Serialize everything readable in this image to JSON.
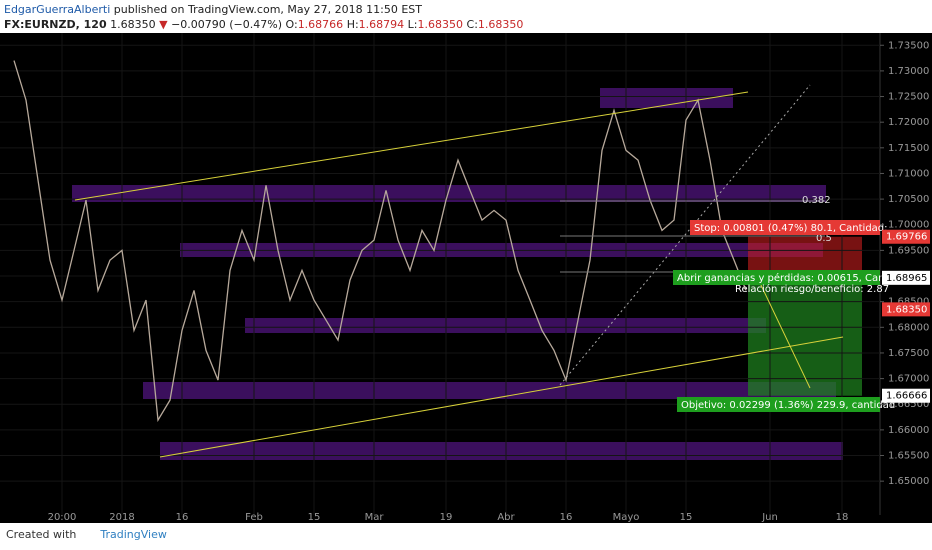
{
  "header": {
    "user": "EdgarGuerraAlberti",
    "published": "published on TradingView.com, May 27, 2018 11:50 EST",
    "symbol": "FX:EURNZD, 120",
    "last": "1.68350",
    "change": "−0.00790 (−0.47%)",
    "o_label": "O:",
    "o": "1.68766",
    "h_label": "H:",
    "h": "1.68794",
    "l_label": "L:",
    "l": "1.68350",
    "c_label": "C:",
    "c": "1.68350"
  },
  "footer": {
    "created": "Created with",
    "brand": "TradingView"
  },
  "chart_data": {
    "type": "line",
    "categories": [
      null,
      null,
      null,
      null,
      "20:00",
      null,
      null,
      null,
      null,
      "2018",
      null,
      null,
      null,
      null,
      "16",
      null,
      null,
      null,
      null,
      null,
      "Feb",
      null,
      null,
      null,
      null,
      "15",
      null,
      null,
      null,
      null,
      "Mar",
      null,
      null,
      null,
      null,
      null,
      "19",
      null,
      null,
      null,
      null,
      "Abr",
      null,
      null,
      null,
      null,
      "16",
      null,
      null,
      null,
      null,
      "Mayo",
      null,
      null,
      null,
      null,
      "15",
      null,
      null,
      null,
      null,
      null,
      null,
      "Jun",
      null,
      null,
      null,
      null,
      null,
      "18",
      null,
      null,
      null
    ],
    "series": [
      {
        "color": "#b7a99b",
        "values": [
          1.732,
          1.7243,
          1.7087,
          1.6931,
          1.6853,
          1.695,
          1.7048,
          1.6872,
          1.6931,
          1.695,
          1.6794,
          1.6853,
          1.6619,
          1.6658,
          1.6794,
          1.6872,
          1.6755,
          1.6697,
          1.6911,
          1.6989,
          1.6931,
          1.7077,
          1.695,
          1.6853,
          1.6911,
          1.6853,
          1.6814,
          1.6775,
          1.6892,
          1.695,
          1.697,
          1.7067,
          1.697,
          1.6911,
          1.6989,
          1.695,
          1.7048,
          1.7126,
          1.7067,
          1.7009,
          1.7028,
          1.7009,
          1.6911,
          1.6853,
          1.6794,
          1.6755,
          1.6697,
          1.6814,
          1.6931,
          1.7145,
          1.7223,
          1.7145,
          1.7126,
          1.7048,
          1.6989,
          1.7009,
          1.7204,
          1.7243,
          1.7126,
          1.6989,
          1.6931,
          1.6872,
          null,
          null,
          null,
          null,
          null,
          null,
          null,
          null,
          null,
          null,
          null
        ]
      }
    ],
    "ylim": [
      1.6434,
      1.737
    ],
    "yticks": [
      {
        "value": 1.65,
        "label": "1.65000"
      },
      {
        "value": 1.655,
        "label": "1.65500"
      },
      {
        "value": 1.66,
        "label": "1.66000"
      },
      {
        "value": 1.665,
        "label": "1.66500"
      },
      {
        "value": 1.67,
        "label": "1.67000"
      },
      {
        "value": 1.675,
        "label": "1.67500"
      },
      {
        "value": 1.68,
        "label": "1.68000"
      },
      {
        "value": 1.685,
        "label": "1.68500"
      },
      {
        "value": 1.69,
        "label": "1.69000"
      },
      {
        "value": 1.695,
        "label": "1.69500"
      },
      {
        "value": 1.7,
        "label": "1.70000"
      },
      {
        "value": 1.705,
        "label": "1.70500"
      },
      {
        "value": 1.71,
        "label": "1.71000"
      },
      {
        "value": 1.715,
        "label": "1.71500"
      },
      {
        "value": 1.72,
        "label": "1.72000"
      },
      {
        "value": 1.725,
        "label": "1.72500"
      },
      {
        "value": 1.73,
        "label": "1.73000"
      },
      {
        "value": 1.735,
        "label": "1.73500"
      }
    ],
    "grid": true,
    "price_tags": [
      {
        "value": 1.69766,
        "label": "1.69766",
        "color": "#e53935",
        "text_color": "#ffffff"
      },
      {
        "value": 1.68965,
        "label": "1.68965",
        "color": "#ffffff",
        "text_color": "#000000"
      },
      {
        "value": 1.6835,
        "label": "1.68350",
        "color": "#e53935",
        "text_color": "#ffffff"
      },
      {
        "value": 1.66666,
        "label": "1.66666",
        "color": "#ffffff",
        "text_color": "#000000"
      }
    ],
    "fib_labels": [
      "0.382",
      "0.5"
    ],
    "stop_text": "Stop: 0.00801 (0.47%) 80.1, Cantidad:",
    "pnl_text": "Abrir ganancias y pérdidas: 0.00615, Canti",
    "ratio_text": "Relación riesgo/beneficio: 2.87",
    "target_text": "Objetivo: 0.02299 (1.36%) 229.9, cantidad"
  }
}
